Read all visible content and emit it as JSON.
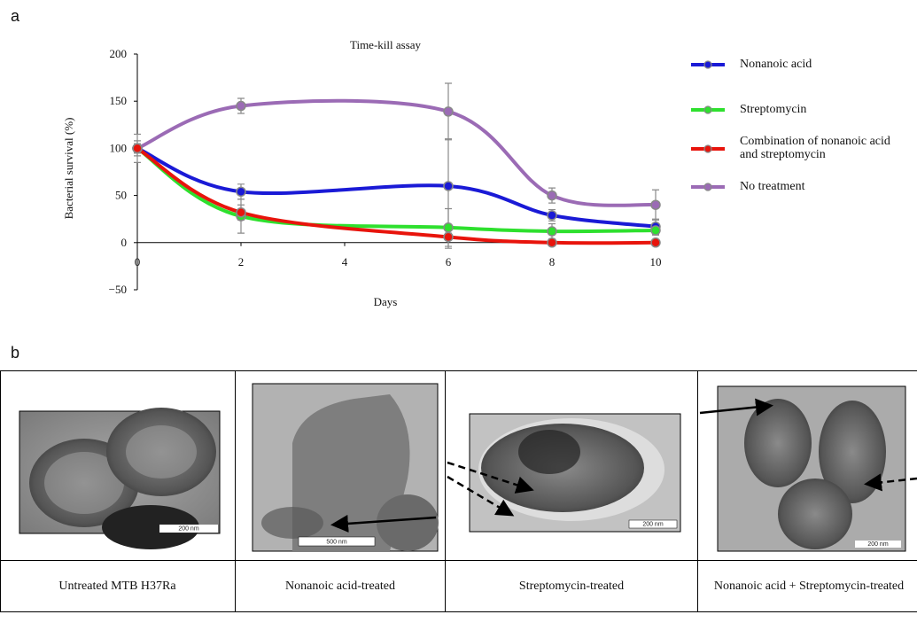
{
  "panel_labels": [
    "a",
    "b"
  ],
  "chart_data": {
    "type": "line",
    "title": "Time-kill assay",
    "x_label": "Days",
    "y_label": "Bacterial survival (%)",
    "x": [
      0,
      2,
      6,
      8,
      10
    ],
    "xlim": [
      0,
      10
    ],
    "xticks": [
      0,
      2,
      4,
      6,
      8,
      10
    ],
    "ylim": [
      -50,
      200
    ],
    "yticks": [
      {
        "value": -50,
        "label": "−50"
      },
      0,
      50,
      100,
      150,
      200
    ],
    "grid": false,
    "legend": "right",
    "series": [
      {
        "name": "Nonanoic acid",
        "color": "#1a1ad6",
        "values": [
          100,
          54,
          60,
          29,
          17
        ],
        "errors": [
          8,
          8,
          50,
          6,
          8
        ]
      },
      {
        "name": "Streptomycin",
        "color": "#2ee02e",
        "values": [
          100,
          28,
          16,
          12,
          13
        ],
        "errors": [
          5,
          18,
          20,
          8,
          5
        ]
      },
      {
        "name": "Combination of nonanoic acid and streptomycin",
        "color": "#e8140c",
        "values": [
          100,
          32,
          6,
          0,
          0
        ],
        "errors": [
          5,
          8,
          12,
          3,
          3
        ]
      },
      {
        "name": "No treatment",
        "color": "#9b6bb5",
        "values": [
          100,
          145,
          139,
          50,
          40
        ],
        "errors": [
          15,
          8,
          30,
          8,
          16
        ]
      }
    ]
  },
  "table": {
    "scale_bars": [
      "200 nm",
      "500 nm",
      "200 nm",
      "200 nm"
    ],
    "captions": [
      "Untreated MTB H37Ra",
      "Nonanoic acid-treated",
      "Streptomycin-treated",
      "Nonanoic acid + Streptomycin-treated"
    ]
  }
}
